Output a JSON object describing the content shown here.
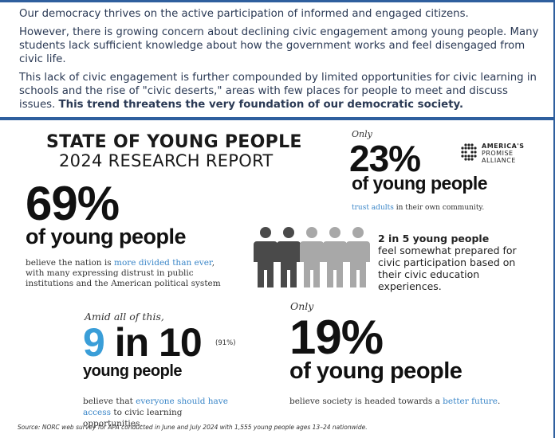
{
  "intro": {
    "p1": "Our democracy thrives on the active participation of informed and engaged citizens.",
    "p2": "However, there is growing concern about declining civic engagement among young people. Many students lack sufficient knowledge about how the government works and feel disengaged from civic life.",
    "p3_plain": "This lack of civic engagement is further compounded by limited opportunities for civic learning in schools and the rise of \"civic deserts,\" areas with few places for people to meet and discuss issues. ",
    "p3_bold": "This trend threatens the very foundation of our democratic society."
  },
  "report": {
    "title": "STATE OF YOUNG PEOPLE",
    "subtitle": "2024 RESEARCH REPORT"
  },
  "logo": {
    "line1": "AMERICA'S",
    "line2": "PROMISE",
    "line3": "ALLIANCE"
  },
  "stat69": {
    "value": "69%",
    "label": "of young people",
    "desc_a": "believe the nation is ",
    "desc_accent": "more divided than ever",
    "desc_b": ", with many expressing distrust in public institutions and the American political system"
  },
  "stat23": {
    "lead": "Only",
    "value": "23%",
    "label": "of young people",
    "desc_accent": "trust adults",
    "desc_b": " in their own community."
  },
  "stat2in5": {
    "head": "2 in 5 young people",
    "body": "feel somewhat prepared for civic participation based on their civic education experiences.",
    "icon_dark_color": "#4a4a4a",
    "icon_light_color": "#a8a8a8"
  },
  "stat9in10": {
    "lead": "Amid all of this,",
    "value_accent": "9",
    "value_rest": " in 10",
    "pct": "(91%)",
    "label": "young people",
    "desc_a": "believe that ",
    "desc_accent": "everyone should have access",
    "desc_b": " to civic learning opportunities."
  },
  "stat19": {
    "lead": "Only",
    "value": "19%",
    "label": "of young people",
    "desc_a": "believe society is headed towards a ",
    "desc_accent": "better future",
    "desc_b": "."
  },
  "source": "Source: NORC web survey for APA conducted in June and July 2024 with 1,555 young people ages 13–24 nationwide.",
  "colors": {
    "rule": "#2f5f9e",
    "accent": "#3a86c8",
    "nine": "#3a9ed8"
  }
}
